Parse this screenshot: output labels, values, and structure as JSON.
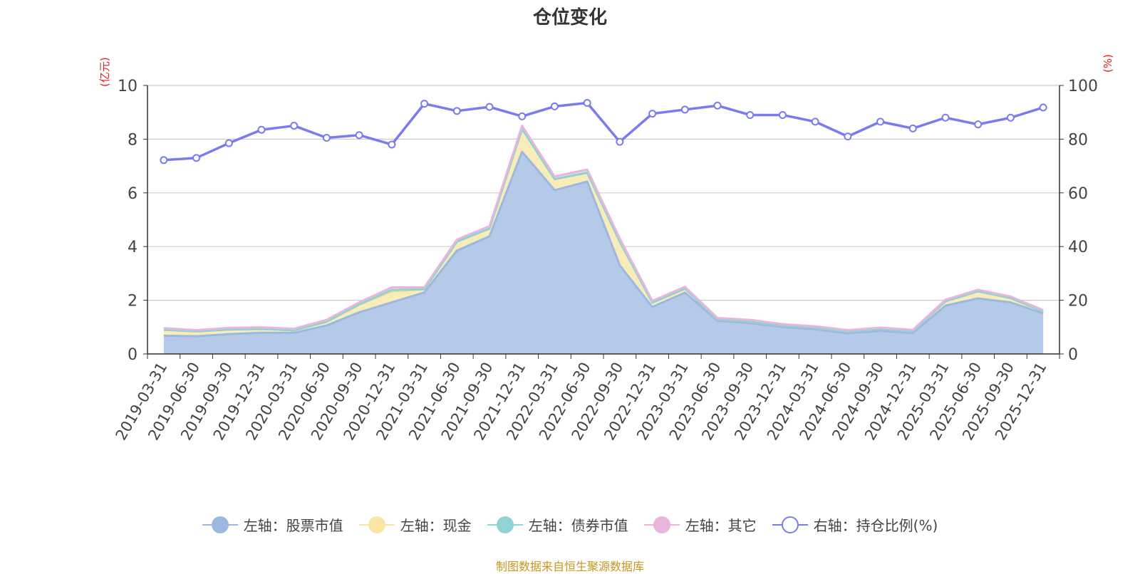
{
  "title": "仓位变化",
  "left_unit": "(亿元)",
  "right_unit": "(%)",
  "source_text": "制图数据来自恒生聚源数据库",
  "legend": [
    {
      "label": "左轴：股票市值",
      "color": "#9db8e0",
      "icon": "filled-circle"
    },
    {
      "label": "左轴：现金",
      "color": "#f8e7a4",
      "icon": "filled-circle"
    },
    {
      "label": "左轴：债券市值",
      "color": "#8fd3d3",
      "icon": "filled-circle"
    },
    {
      "label": "左轴：其它",
      "color": "#e8b6dc",
      "icon": "filled-circle"
    },
    {
      "label": "右轴：持仓比例(%)",
      "color": "#7b7bef",
      "icon": "hollow-circle"
    }
  ],
  "chart_data": {
    "type": "area",
    "categories": [
      "2019-03-31",
      "2019-06-30",
      "2019-09-30",
      "2019-12-31",
      "2020-03-31",
      "2020-06-30",
      "2020-09-30",
      "2020-12-31",
      "2021-03-31",
      "2021-06-30",
      "2021-09-30",
      "2021-12-31",
      "2022-03-31",
      "2022-06-30",
      "2022-09-30",
      "2022-12-31",
      "2023-03-31",
      "2023-06-30",
      "2023-09-30",
      "2023-12-31",
      "2024-03-31",
      "2024-06-30",
      "2024-09-30",
      "2024-12-31",
      "2025-03-31",
      "2025-06-30",
      "2025-09-30",
      "2025-12-31"
    ],
    "y_left": {
      "min": 0,
      "max": 10,
      "ticks": [
        0,
        2,
        4,
        6,
        8,
        10
      ],
      "label": "(亿元)"
    },
    "y_right": {
      "min": 0,
      "max": 100,
      "ticks": [
        0,
        20,
        40,
        60,
        80,
        100
      ],
      "label": "(%)"
    },
    "series": [
      {
        "name": "左轴：股票市值",
        "axis": "left",
        "stacked": true,
        "color": "#9db8e0",
        "fill": "#b5c9e8",
        "values": [
          0.68,
          0.66,
          0.74,
          0.79,
          0.79,
          1.06,
          1.55,
          1.92,
          2.29,
          3.85,
          4.38,
          7.53,
          6.1,
          6.42,
          3.3,
          1.75,
          2.28,
          1.24,
          1.15,
          1.0,
          0.92,
          0.77,
          0.86,
          0.78,
          1.8,
          2.07,
          1.92,
          1.51
        ]
      },
      {
        "name": "左轴：现金",
        "axis": "left",
        "stacked": true,
        "color": "#f3dc8a",
        "fill": "#f8ecb8",
        "values": [
          0.22,
          0.18,
          0.17,
          0.14,
          0.09,
          0.14,
          0.29,
          0.41,
          0.12,
          0.33,
          0.29,
          0.85,
          0.41,
          0.33,
          0.88,
          0.16,
          0.15,
          0.05,
          0.06,
          0.06,
          0.06,
          0.07,
          0.07,
          0.07,
          0.16,
          0.26,
          0.16,
          0.07
        ]
      },
      {
        "name": "左轴：债券市值",
        "axis": "left",
        "stacked": true,
        "color": "#8fd3d3",
        "fill": "#bfe6e6",
        "values": [
          0,
          0,
          0,
          0,
          0,
          0,
          0,
          0.05,
          0,
          0,
          0,
          0,
          0,
          0,
          0,
          0,
          0,
          0,
          0,
          0,
          0,
          0,
          0,
          0,
          0,
          0,
          0,
          0
        ]
      },
      {
        "name": "左轴：其它",
        "axis": "left",
        "stacked": true,
        "color": "#e8b6dc",
        "fill": "#f1d6ea",
        "values": [
          0.06,
          0.05,
          0.06,
          0.06,
          0.06,
          0.07,
          0.08,
          0.1,
          0.07,
          0.08,
          0.09,
          0.12,
          0.1,
          0.12,
          0.12,
          0.07,
          0.07,
          0.05,
          0.06,
          0.05,
          0.05,
          0.05,
          0.05,
          0.05,
          0.06,
          0.06,
          0.06,
          0.05
        ]
      },
      {
        "name": "右轴：持仓比例(%)",
        "axis": "right",
        "type": "line",
        "color": "#7b7bef",
        "values": [
          72.2,
          73.0,
          78.5,
          83.5,
          85.0,
          80.5,
          81.5,
          78.0,
          93.2,
          90.5,
          92.0,
          88.5,
          92.2,
          93.5,
          79.0,
          89.5,
          91.0,
          92.5,
          89.0,
          89.0,
          86.5,
          81.0,
          86.5,
          84.0,
          88.0,
          85.5,
          88.0,
          91.8
        ]
      }
    ]
  }
}
